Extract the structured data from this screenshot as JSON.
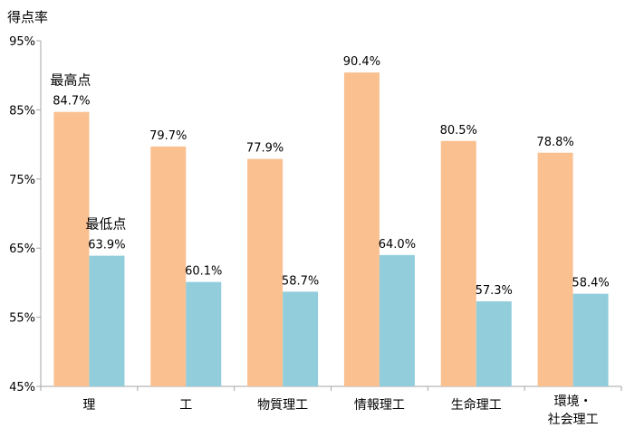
{
  "chart_data": {
    "type": "bar",
    "ylabel": "得点率",
    "ylim": [
      45,
      95
    ],
    "yticks": [
      "45%",
      "55%",
      "65%",
      "75%",
      "85%",
      "95%"
    ],
    "categories": [
      [
        "理"
      ],
      [
        "工"
      ],
      [
        "物質理工"
      ],
      [
        "情報理工"
      ],
      [
        "生命理工"
      ],
      [
        "環境・",
        "社会理工"
      ]
    ],
    "series": [
      {
        "name": "最高点",
        "color": "#FAC090",
        "values": [
          84.7,
          79.7,
          77.9,
          90.4,
          80.5,
          78.8
        ],
        "labels": [
          "84.7%",
          "79.7%",
          "77.9%",
          "90.4%",
          "80.5%",
          "78.8%"
        ]
      },
      {
        "name": "最低点",
        "color": "#92CDDC",
        "values": [
          63.9,
          60.1,
          58.7,
          64.0,
          57.3,
          58.4
        ],
        "labels": [
          "63.9%",
          "60.1%",
          "58.7%",
          "64.0%",
          "57.3%",
          "58.4%"
        ]
      }
    ],
    "grid": false,
    "legend": "none"
  }
}
